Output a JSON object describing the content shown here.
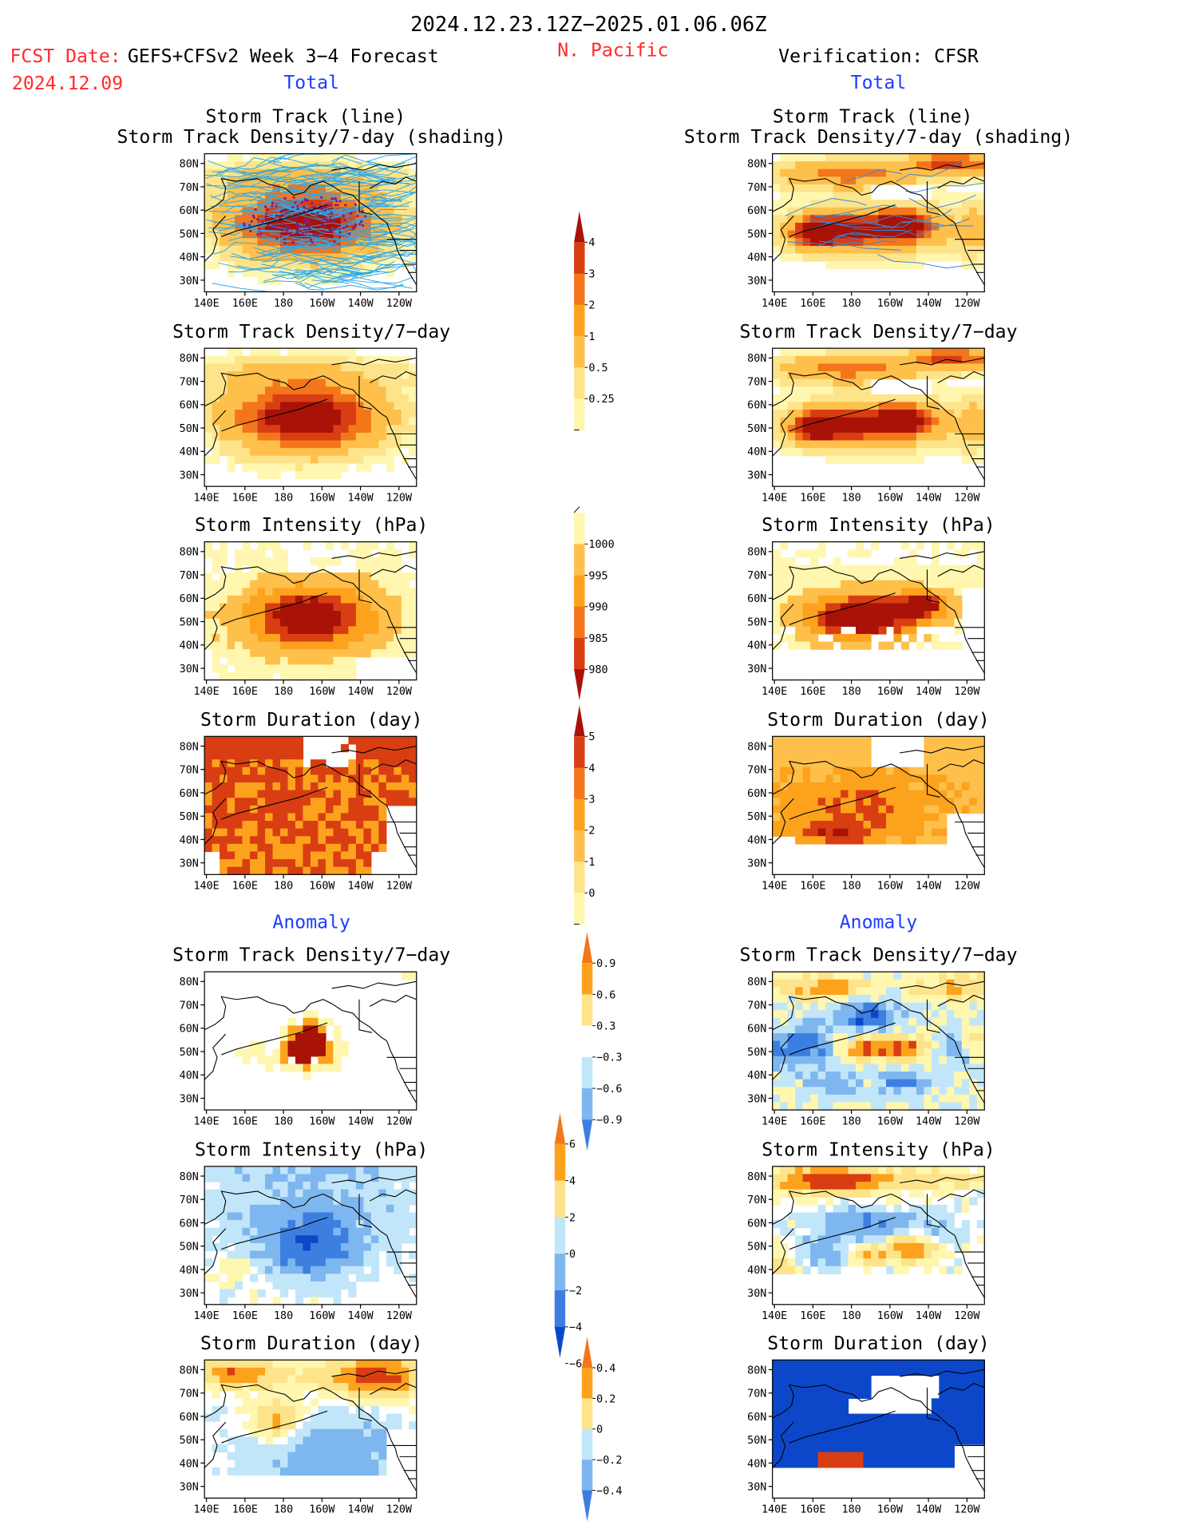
{
  "header": {
    "date_range": "2024.12.23.12Z−2025.01.06.06Z",
    "fcst_label": "FCST Date:",
    "fcst_date": "2024.12.09",
    "model": "GEFS+CFSv2 Week 3−4 Forecast",
    "region": "N. Pacific",
    "verification": "Verification: CFSR",
    "section_total_left": "Total",
    "section_total_right": "Total",
    "section_anom_left": "Anomaly",
    "section_anom_right": "Anomaly"
  },
  "titles": {
    "track_line": "Storm Track (line)",
    "track_shading": "Storm Track Density/7-day (shading)",
    "density": "Storm Track Density/7−day",
    "intensity": "Storm Intensity (hPa)",
    "duration": "Storm Duration (day)"
  },
  "axes": {
    "lat_ticks": [
      "80N",
      "70N",
      "60N",
      "50N",
      "40N",
      "30N"
    ],
    "lon_ticks": [
      "140E",
      "160E",
      "180",
      "160W",
      "140W",
      "120W"
    ]
  },
  "colors": {
    "warm": [
      "#fff7b0",
      "#fde48a",
      "#fec04b",
      "#fda21d",
      "#f4761a",
      "#d83e12",
      "#a81207"
    ],
    "cool": [
      "#0d47c9",
      "#3d7fe0",
      "#7eb6ef",
      "#c2e6f9"
    ],
    "track_line": "#2fa8e6",
    "track_dot": "#8a1a7a",
    "accent_red": "#ff2a2a",
    "accent_blue": "#1e3cff"
  },
  "colorbars": [
    {
      "id": "density",
      "labels": [
        "4",
        "3",
        "2",
        "1",
        "0.5",
        "0.25"
      ],
      "colors": [
        "#a81207",
        "#d83e12",
        "#f4761a",
        "#fda21d",
        "#fec04b",
        "#fde48a",
        "#fff7b0"
      ]
    },
    {
      "id": "intensity",
      "labels": [
        "1000",
        "995",
        "990",
        "985",
        "980"
      ],
      "colors": [
        "#fff7b0",
        "#fec04b",
        "#fda21d",
        "#f4761a",
        "#d83e12",
        "#a81207"
      ]
    },
    {
      "id": "duration",
      "labels": [
        "5",
        "4",
        "3",
        "2",
        "1",
        "0"
      ],
      "colors": [
        "#a81207",
        "#d83e12",
        "#f4761a",
        "#fda21d",
        "#fec04b",
        "#fde48a",
        "#fff7b0"
      ]
    },
    {
      "id": "anom_density",
      "labels": [
        "0.9",
        "0.6",
        "0.3",
        "−0.3",
        "−0.6",
        "−0.9"
      ],
      "colors": [
        "#f4761a",
        "#fda21d",
        "#fde48a",
        "#ffffff",
        "#c2e6f9",
        "#7eb6ef",
        "#3d7fe0"
      ]
    },
    {
      "id": "anom_intensity",
      "labels": [
        "6",
        "4",
        "2",
        "0",
        "−2",
        "−4",
        "−6"
      ],
      "colors": [
        "#f4761a",
        "#fda21d",
        "#fde48a",
        "#c2e6f9",
        "#7eb6ef",
        "#3d7fe0",
        "#0d47c9"
      ]
    },
    {
      "id": "anom_duration",
      "labels": [
        "0.4",
        "0.2",
        "0",
        "−0.2",
        "−0.4"
      ],
      "colors": [
        "#f4761a",
        "#fda21d",
        "#fde48a",
        "#c2e6f9",
        "#7eb6ef",
        "#3d7fe0"
      ]
    }
  ],
  "chart_data": [
    {
      "type": "heatmap",
      "panel": "forecast-total-track",
      "title": "Storm Track (line) / Storm Track Density/7-day (shading)",
      "field": "Storm Track Density/7-day",
      "units": "per 7-day",
      "peak": ">4",
      "peak_location": "50N 180"
    },
    {
      "type": "heatmap",
      "panel": "verification-total-track",
      "title": "Storm Track (line) / Storm Track Density/7-day (shading)",
      "field": "Storm Track Density/7-day",
      "peak": ">4",
      "peak_location": "50N 170E-145W"
    },
    {
      "type": "heatmap",
      "panel": "forecast-total-density",
      "title": "Storm Track Density/7−day",
      "levels": [
        0.25,
        0.5,
        1,
        2,
        3,
        4
      ]
    },
    {
      "type": "heatmap",
      "panel": "verification-total-density",
      "title": "Storm Track Density/7−day",
      "levels": [
        0.25,
        0.5,
        1,
        2,
        3,
        4
      ]
    },
    {
      "type": "heatmap",
      "panel": "forecast-total-intensity",
      "title": "Storm Intensity (hPa)",
      "levels": [
        1000,
        995,
        990,
        985,
        980
      ]
    },
    {
      "type": "heatmap",
      "panel": "verification-total-intensity",
      "title": "Storm Intensity (hPa)",
      "levels": [
        1000,
        995,
        990,
        985,
        980
      ]
    },
    {
      "type": "heatmap",
      "panel": "forecast-total-duration",
      "title": "Storm Duration (day)",
      "levels": [
        0,
        1,
        2,
        3,
        4,
        5
      ]
    },
    {
      "type": "heatmap",
      "panel": "verification-total-duration",
      "title": "Storm Duration (day)",
      "levels": [
        0,
        1,
        2,
        3,
        4,
        5
      ]
    },
    {
      "type": "heatmap",
      "panel": "forecast-anom-density",
      "title": "Storm Track Density/7−day",
      "levels": [
        -0.9,
        -0.6,
        -0.3,
        0.3,
        0.6,
        0.9
      ]
    },
    {
      "type": "heatmap",
      "panel": "verification-anom-density",
      "title": "Storm Track Density/7−day",
      "levels": [
        -0.9,
        -0.6,
        -0.3,
        0.3,
        0.6,
        0.9
      ]
    },
    {
      "type": "heatmap",
      "panel": "forecast-anom-intensity",
      "title": "Storm Intensity (hPa)",
      "levels": [
        -6,
        -4,
        -2,
        0,
        2,
        4,
        6
      ]
    },
    {
      "type": "heatmap",
      "panel": "verification-anom-intensity",
      "title": "Storm Intensity (hPa)",
      "levels": [
        -6,
        -4,
        -2,
        0,
        2,
        4,
        6
      ]
    },
    {
      "type": "heatmap",
      "panel": "forecast-anom-duration",
      "title": "Storm Duration (day)",
      "levels": [
        -0.4,
        -0.2,
        0,
        0.2,
        0.4
      ]
    },
    {
      "type": "heatmap",
      "panel": "verification-anom-duration",
      "title": "Storm Duration (day)",
      "levels": [
        -0.4,
        -0.2,
        0,
        0.2,
        0.4
      ]
    }
  ]
}
